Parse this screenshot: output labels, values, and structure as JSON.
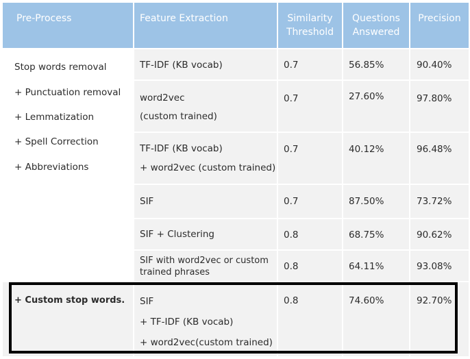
{
  "header": {
    "preprocess": "Pre-Process",
    "feature": "Feature Extraction",
    "similarity": [
      "Similarity",
      "Threshold"
    ],
    "questions": [
      "Questions",
      "Answered"
    ],
    "precision": "Precision"
  },
  "preprocess_steps": [
    "Stop words removal",
    "+ Punctuation removal",
    "+ Lemmatization",
    "+ Spell Correction",
    "+  Abbreviations"
  ],
  "rows": [
    {
      "feature": [
        "TF-IDF (KB vocab)"
      ],
      "threshold": "0.7",
      "answered": "56.85%",
      "precision": "90.40%"
    },
    {
      "feature": [
        "word2vec",
        "(custom trained)"
      ],
      "threshold": "0.7",
      "answered": "27.60%",
      "precision": "97.80%"
    },
    {
      "feature": [
        "TF-IDF (KB vocab)",
        "+ word2vec (custom trained)"
      ],
      "threshold": "0.7",
      "answered": "40.12%",
      "precision": "96.48%"
    },
    {
      "feature": [
        "SIF"
      ],
      "threshold": "0.7",
      "answered": "87.50%",
      "precision": "73.72%"
    },
    {
      "feature": [
        "SIF + Clustering"
      ],
      "threshold": "0.8",
      "answered": "68.75%",
      "precision": "90.62%"
    },
    {
      "feature": [
        "SIF with word2vec or custom",
        "trained phrases"
      ],
      "threshold": "0.8",
      "answered": "64.11%",
      "precision": "93.08%"
    }
  ],
  "highlighted_row": {
    "preprocess": "+ Custom stop words.",
    "feature": [
      "SIF",
      "+ TF-IDF (KB vocab)",
      "+ word2vec(custom trained)"
    ],
    "threshold": "0.8",
    "answered": "74.60%",
    "precision": "92.70%"
  }
}
